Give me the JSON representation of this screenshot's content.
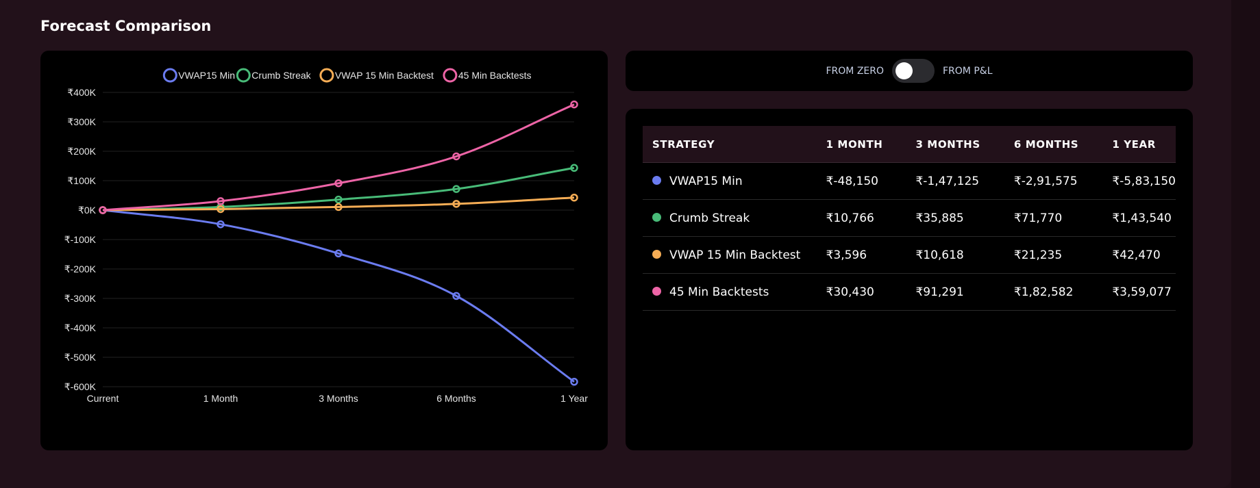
{
  "section_title": "Forecast Comparison",
  "toggle": {
    "left_label": "FROM ZERO",
    "right_label": "FROM P&L",
    "state": "left"
  },
  "table": {
    "headers": [
      "STRATEGY",
      "1 MONTH",
      "3 MONTHS",
      "6 MONTHS",
      "1 YEAR"
    ],
    "rows": [
      {
        "strategy": "VWAP15 Min",
        "color": "#6b7cf0",
        "m1": "₹-48,150",
        "m3": "₹-1,47,125",
        "m6": "₹-2,91,575",
        "y1": "₹-5,83,150"
      },
      {
        "strategy": "Crumb Streak",
        "color": "#48bb78",
        "m1": "₹10,766",
        "m3": "₹35,885",
        "m6": "₹71,770",
        "y1": "₹1,43,540"
      },
      {
        "strategy": "VWAP 15 Min Backtest",
        "color": "#f6ad55",
        "m1": "₹3,596",
        "m3": "₹10,618",
        "m6": "₹21,235",
        "y1": "₹42,470"
      },
      {
        "strategy": "45 Min Backtests",
        "color": "#ed64a6",
        "m1": "₹30,430",
        "m3": "₹91,291",
        "m6": "₹1,82,582",
        "y1": "₹3,59,077"
      }
    ]
  },
  "chart_data": {
    "type": "line",
    "categories": [
      "Current",
      "1 Month",
      "3 Months",
      "6 Months",
      "1 Year"
    ],
    "ylim": [
      -600000,
      400000
    ],
    "yticks": [
      400000,
      300000,
      200000,
      100000,
      0,
      -100000,
      -200000,
      -300000,
      -400000,
      -500000,
      -600000
    ],
    "ytick_labels": [
      "₹400K",
      "₹300K",
      "₹200K",
      "₹100K",
      "₹0K",
      "₹-100K",
      "₹-200K",
      "₹-300K",
      "₹-400K",
      "₹-500K",
      "₹-600K"
    ],
    "legend_position": "top",
    "grid": true,
    "series": [
      {
        "name": "VWAP15 Min",
        "color": "#6b7cf0",
        "values": [
          0,
          -48150,
          -147125,
          -291575,
          -583150
        ]
      },
      {
        "name": "Crumb Streak",
        "color": "#48bb78",
        "values": [
          0,
          10766,
          35885,
          71770,
          143540
        ]
      },
      {
        "name": "VWAP 15 Min Backtest",
        "color": "#f6ad55",
        "values": [
          0,
          3596,
          10618,
          21235,
          42470
        ]
      },
      {
        "name": "45 Min Backtests",
        "color": "#ed64a6",
        "values": [
          0,
          30430,
          91291,
          182582,
          359077
        ]
      }
    ]
  }
}
